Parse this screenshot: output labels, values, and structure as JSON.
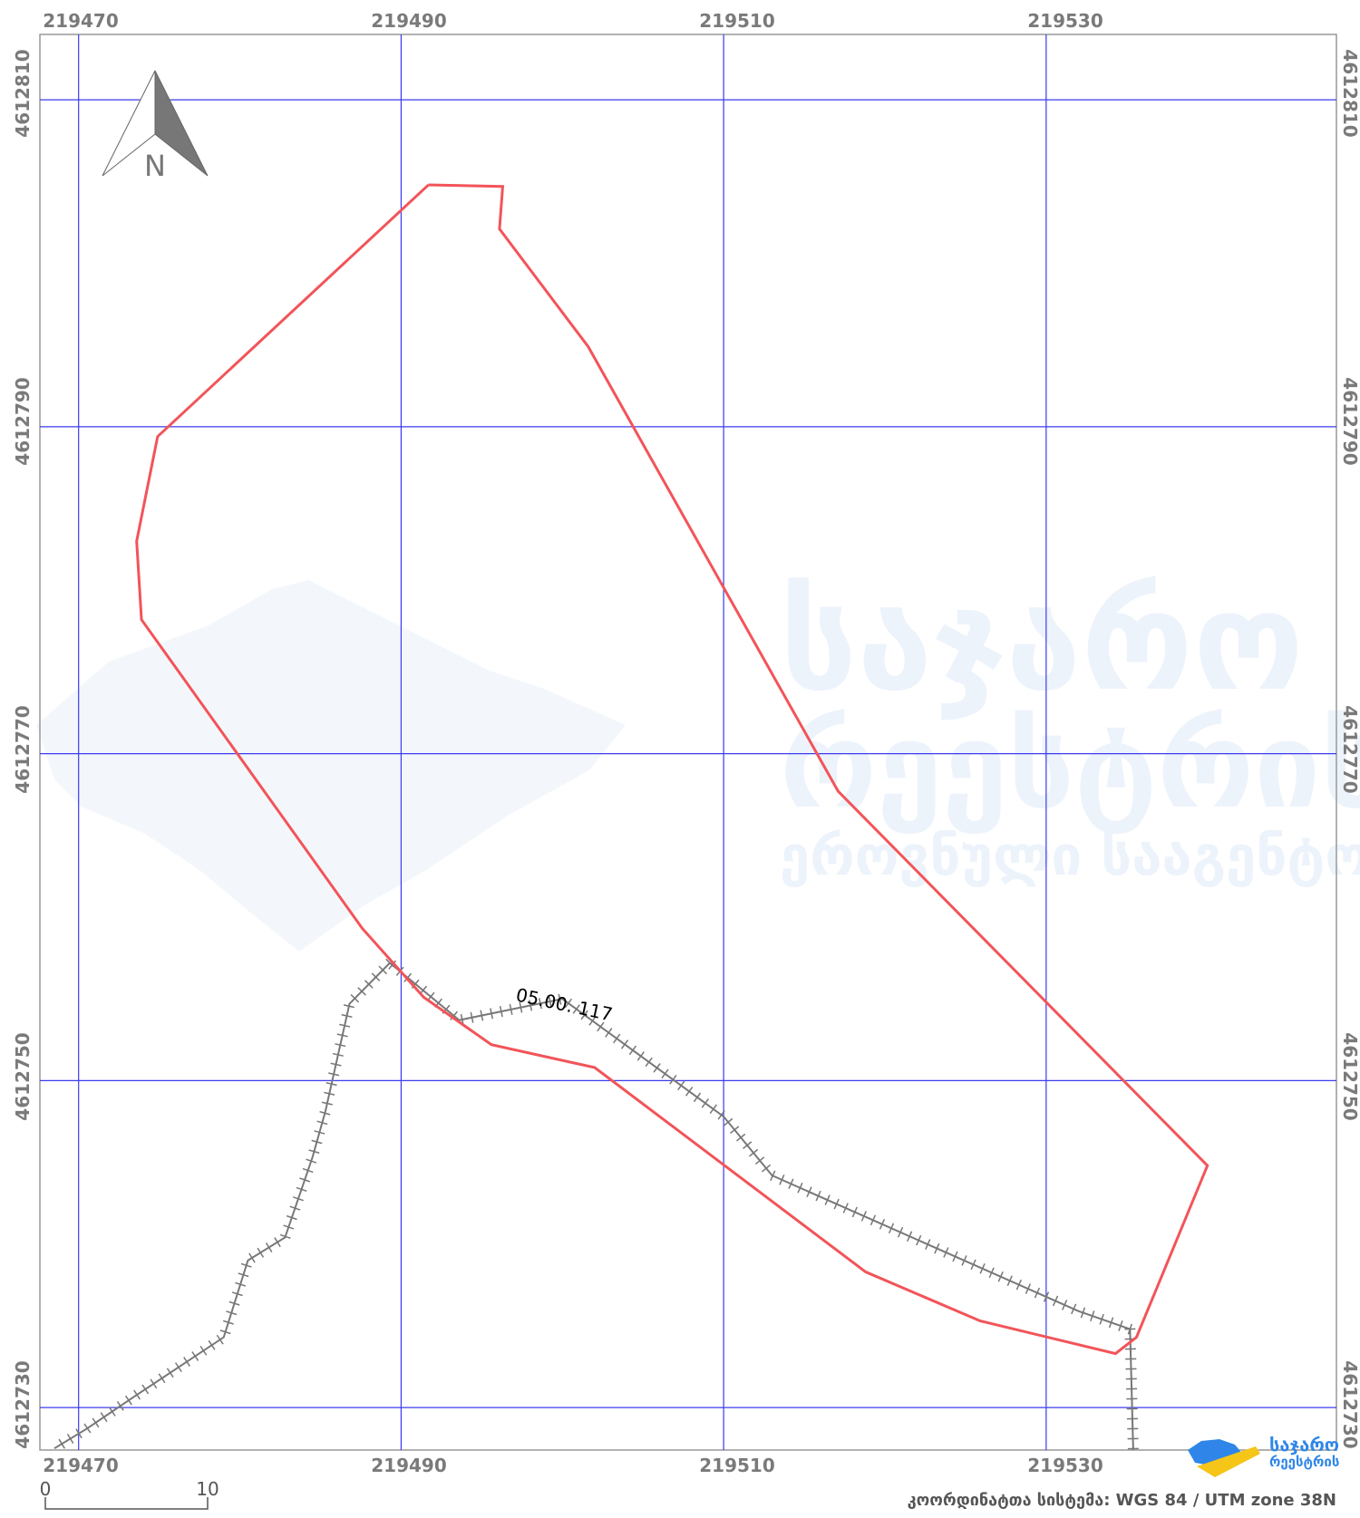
{
  "map": {
    "x_ticks": [
      219470,
      219490,
      219510,
      219530
    ],
    "y_ticks": [
      4612810,
      4612790,
      4612770,
      4612750,
      4612730
    ],
    "bottom_x_labels": [
      "219470",
      "219490",
      "219510",
      "219530"
    ],
    "top_x_labels": [
      "219470",
      "219490",
      "219510",
      "219530"
    ],
    "left_y_labels": [
      "4612810",
      "4612790",
      "4612770",
      "4612750",
      "4612730"
    ],
    "right_y_labels": [
      "4612810",
      "4612790",
      "4612770",
      "4612750",
      "4612730"
    ],
    "parcel_label": "05.00. 117",
    "north_label": "N",
    "scale_start": "0",
    "scale_end": "10",
    "crs_text": "კოორდინატთა სისტემა: WGS 84 / UTM zone 38N",
    "logo_line1": "საჯარო",
    "logo_line2": "რეესტრის",
    "watermark_line1": "საჯარო",
    "watermark_line2": "რეესტრის",
    "watermark_line3": "ეროვნული სააგენტო",
    "colors": {
      "grid": "#3b3bf0",
      "parcel_boundary": "#f25459",
      "railway": "#777777",
      "logo_blue": "#2f86e8",
      "logo_yellow": "#f5c518"
    }
  },
  "chart_data": {
    "type": "map",
    "crs": "WGS 84 / UTM zone 38N",
    "xlim": [
      219467.6,
      219548.0
    ],
    "ylim": [
      4612727.4,
      4612814.0
    ],
    "x_ticks": [
      219470,
      219490,
      219510,
      219530
    ],
    "y_ticks": [
      4612730,
      4612750,
      4612770,
      4612790,
      4612810
    ],
    "parcel_polygon": [
      [
        219491.7,
        4612804.8
      ],
      [
        219496.3,
        4612804.7
      ],
      [
        219496.1,
        4612802.1
      ],
      [
        219501.6,
        4612794.9
      ],
      [
        219517.1,
        4612767.7
      ],
      [
        219540.0,
        4612744.8
      ],
      [
        219535.6,
        4612734.3
      ],
      [
        219534.3,
        4612733.3
      ],
      [
        219525.9,
        4612735.3
      ],
      [
        219518.8,
        4612738.3
      ],
      [
        219502.0,
        4612750.8
      ],
      [
        219495.6,
        4612752.2
      ],
      [
        219491.4,
        4612755.1
      ],
      [
        219487.6,
        4612759.3
      ],
      [
        219473.9,
        4612778.2
      ],
      [
        219473.6,
        4612783.0
      ],
      [
        219474.9,
        4612789.4
      ]
    ],
    "railway_main": [
      [
        219535.2,
        4612734.8
      ],
      [
        219532.0,
        4612735.9
      ],
      [
        219513.0,
        4612744.2
      ],
      [
        219510.0,
        4612747.8
      ],
      [
        219500.0,
        4612755.0
      ],
      [
        219493.6,
        4612753.7
      ],
      [
        219489.3,
        4612757.2
      ]
    ],
    "railway_branch": [
      [
        219489.3,
        4612757.2
      ],
      [
        219486.8,
        4612754.7
      ],
      [
        219485.3,
        4612748.1
      ],
      [
        219484.5,
        4612745.3
      ],
      [
        219482.8,
        4612740.4
      ],
      [
        219480.5,
        4612739.0
      ],
      [
        219479.0,
        4612734.3
      ],
      [
        219473.5,
        4612730.7
      ],
      [
        219470.5,
        4612728.7
      ],
      [
        219468.5,
        4612727.5
      ]
    ],
    "railway_south": [
      [
        219535.2,
        4612734.8
      ],
      [
        219535.4,
        4612727.4
      ]
    ],
    "labels": [
      "05.00. 117"
    ]
  }
}
